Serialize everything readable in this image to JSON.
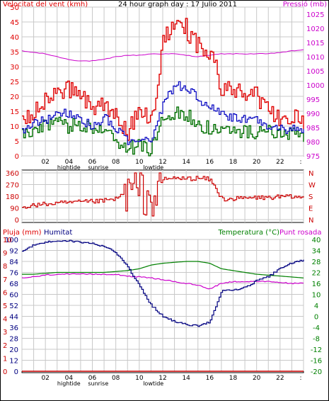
{
  "colors": {
    "wind": "#e00000",
    "wind_avg": "#0000c0",
    "wind_gust_low": "#007000",
    "pressure": "#cc00cc",
    "direction": "#cc0000",
    "rain": "#cc0000",
    "humidity": "#000080",
    "temperature": "#008000",
    "dewpoint": "#cc00cc",
    "grid": "#c8c8c8"
  },
  "chart_data": [
    {
      "type": "line",
      "title": "24 hour graph day : 17 Julio 2011",
      "left_axis_label": "Velocitat del vent (kmh)",
      "right_axis_label": "Pressió (mb)",
      "ylim": [
        0,
        50
      ],
      "y2lim": [
        975,
        1027.5
      ],
      "y_ticks": [
        "0",
        "5",
        "10",
        "15",
        "20",
        "25",
        "30",
        "35",
        "40",
        "45",
        "50"
      ],
      "y2_ticks": [
        "975",
        "980",
        "985",
        "990",
        "995",
        "1000",
        "1005",
        "1010",
        "1015",
        "1020",
        "1025"
      ],
      "x_ticks": [
        "02",
        "04",
        "06",
        "08",
        "10",
        "12",
        "14",
        "16",
        "18",
        "20",
        "22",
        ":"
      ],
      "x_annotations": [
        "hightide",
        "sunrise",
        "lowtide"
      ],
      "hours": [
        0,
        1,
        2,
        3,
        4,
        5,
        6,
        7,
        8,
        9,
        10,
        11,
        12,
        13,
        14,
        15,
        16,
        17,
        18,
        19,
        20,
        21,
        22,
        23,
        24
      ],
      "series": [
        {
          "name": "max_wind",
          "axis": "left",
          "values": [
            10,
            14,
            18,
            20,
            22,
            21,
            15,
            18,
            12,
            8,
            14,
            10,
            38,
            45,
            42,
            36,
            35,
            22,
            22,
            20,
            19,
            15,
            12,
            13,
            9
          ]
        },
        {
          "name": "avg_wind",
          "axis": "left",
          "values": [
            8,
            11,
            12,
            15,
            14,
            12,
            10,
            13,
            9,
            5,
            6,
            5,
            17,
            24,
            23,
            19,
            17,
            14,
            13,
            12,
            12,
            10,
            9,
            9,
            8
          ]
        },
        {
          "name": "min_wind",
          "axis": "left",
          "values": [
            8,
            8,
            10,
            11,
            10,
            10,
            10,
            9,
            5,
            2,
            4,
            2,
            13,
            15,
            14,
            11,
            9,
            8,
            9,
            8,
            8,
            8,
            7,
            7,
            7
          ]
        },
        {
          "name": "pressure",
          "axis": "right",
          "values": [
            1012,
            1011.5,
            1011,
            1010,
            1009,
            1008.5,
            1008.5,
            1009,
            1010,
            1010.5,
            1010.5,
            1011,
            1011,
            1011,
            1010.5,
            1010,
            1010.5,
            1011,
            1011,
            1011,
            1011,
            1011,
            1011.5,
            1012,
            1012.5
          ]
        }
      ]
    },
    {
      "type": "line",
      "ylim": [
        0,
        360
      ],
      "y_ticks": [
        "0",
        "90",
        "180",
        "270",
        "360"
      ],
      "compass_labels": [
        "N",
        "W",
        "S",
        "E",
        "N"
      ],
      "hours": [
        0,
        1,
        2,
        3,
        4,
        5,
        6,
        7,
        8,
        9,
        10,
        11,
        12,
        13,
        14,
        15,
        16,
        17,
        18,
        19,
        20,
        21,
        22,
        23,
        24
      ],
      "series": [
        {
          "name": "wind_direction",
          "values": [
            100,
            110,
            120,
            125,
            130,
            135,
            140,
            145,
            160,
            220,
            230,
            130,
            310,
            320,
            315,
            320,
            310,
            160,
            160,
            165,
            170,
            170,
            175,
            175,
            170
          ]
        }
      ]
    },
    {
      "type": "line",
      "left_labels": [
        "Pluja (mm)",
        "Humitat"
      ],
      "right_labels": [
        "Temperatura (°C)",
        "Punt rosada"
      ],
      "rain_ticks": [
        "0",
        "1",
        "2",
        "3",
        "4",
        "5",
        "6",
        "7",
        "8",
        "9",
        "10"
      ],
      "humidity_ticks": [
        "0",
        "12",
        "20",
        "28",
        "36",
        "44",
        "52",
        "60",
        "68",
        "76",
        "84",
        "92",
        "100"
      ],
      "temperature_ticks": [
        "-20",
        "-16",
        "-12",
        "-8",
        "-4",
        "0",
        "4",
        "10",
        "16",
        "22",
        "28",
        "34",
        "40"
      ],
      "x_ticks": [
        "02",
        "04",
        "06",
        "08",
        "10",
        "12",
        "14",
        "16",
        "18",
        "20",
        "22",
        ":"
      ],
      "x_annotations": [
        "hightide",
        "sunrise",
        "lowtide"
      ],
      "hours": [
        0,
        1,
        2,
        3,
        4,
        5,
        6,
        7,
        8,
        9,
        10,
        11,
        12,
        13,
        14,
        15,
        16,
        17,
        18,
        19,
        20,
        21,
        22,
        23,
        24
      ],
      "series": [
        {
          "name": "rain",
          "axis": "rain",
          "values": [
            0,
            0,
            0,
            0,
            0,
            0,
            0,
            0,
            0,
            0,
            0,
            0,
            0,
            0,
            0,
            0,
            0,
            0,
            0,
            0,
            0,
            0,
            0,
            0,
            0
          ]
        },
        {
          "name": "humidity",
          "axis": "humidity",
          "values": [
            92,
            96,
            98,
            99,
            99,
            98,
            97,
            95,
            90,
            80,
            66,
            52,
            44,
            40,
            38,
            37,
            40,
            63,
            63,
            65,
            70,
            73,
            79,
            83,
            85
          ]
        },
        {
          "name": "temperature",
          "axis": "temperature",
          "values": [
            21,
            21,
            21.5,
            22,
            22,
            22,
            22,
            22,
            22.5,
            23,
            24,
            26,
            27,
            27.5,
            28,
            28,
            27,
            24,
            23,
            22,
            21,
            20.5,
            20,
            19.5,
            19
          ]
        },
        {
          "name": "dewpoint",
          "axis": "temperature",
          "values": [
            19,
            19.5,
            20.5,
            21,
            21,
            21,
            21,
            21,
            21,
            20,
            19.5,
            19,
            18,
            17,
            16,
            15,
            13,
            16,
            17,
            17,
            17,
            17,
            16.5,
            16,
            16
          ]
        }
      ]
    }
  ]
}
